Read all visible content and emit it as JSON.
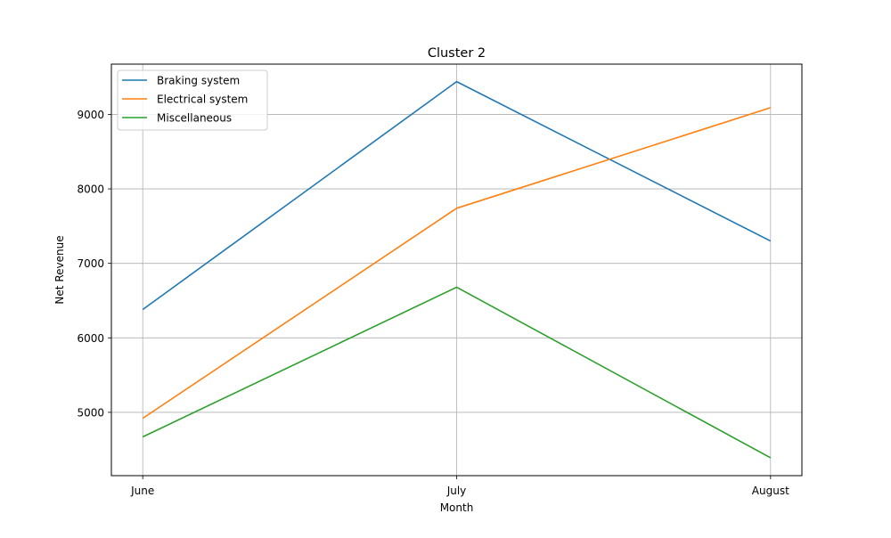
{
  "chart_data": {
    "type": "line",
    "title": "Cluster 2",
    "xlabel": "Month",
    "ylabel": "Net Revenue",
    "categories": [
      "June",
      "July",
      "August"
    ],
    "series": [
      {
        "name": "Braking system",
        "values": [
          6380,
          9440,
          7300
        ],
        "color": "#1f77b4"
      },
      {
        "name": "Electrical system",
        "values": [
          4920,
          7740,
          9090
        ],
        "color": "#ff7f0e"
      },
      {
        "name": "Miscellaneous",
        "values": [
          4670,
          6680,
          4390
        ],
        "color": "#2ca02c"
      }
    ],
    "ylim": [
      4150,
      9675
    ],
    "yticks": [
      5000,
      6000,
      7000,
      8000,
      9000
    ],
    "grid": true,
    "legend": "top-left"
  }
}
